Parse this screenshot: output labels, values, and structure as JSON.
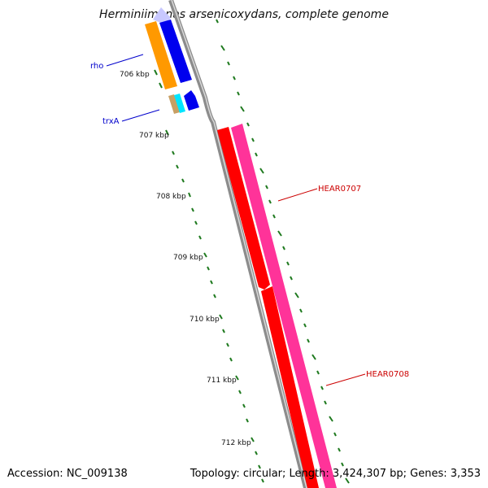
{
  "title": "Herminiimonas arsenicoxydans, complete genome",
  "footer": {
    "accession": "Accession: NC_009138",
    "summary": "Topology: circular; Length: 3,424,307 bp; Genes: 3,353"
  },
  "ticks": [
    {
      "label": "706 kbp"
    },
    {
      "label": "707 kbp"
    },
    {
      "label": "708 kbp"
    },
    {
      "label": "709 kbp"
    },
    {
      "label": "710 kbp"
    },
    {
      "label": "711 kbp"
    },
    {
      "label": "712 kbp"
    }
  ],
  "gene_labels": [
    {
      "text": "rho",
      "color": "#0000cc"
    },
    {
      "text": "trxA",
      "color": "#0000cc"
    },
    {
      "text": "HEAR0707",
      "color": "#cc0000"
    },
    {
      "text": "HEAR0708",
      "color": "#cc0000"
    }
  ],
  "colors": {
    "backbone": "#8c8c8c",
    "tick_green": "#1f7a1f",
    "blue": "#0000ee",
    "orange": "#ff9900",
    "red": "#ff0000",
    "pink": "#ff3399",
    "cyan": "#00e5ff",
    "tan": "#c8a064",
    "lavender": "#c8c8ff"
  }
}
